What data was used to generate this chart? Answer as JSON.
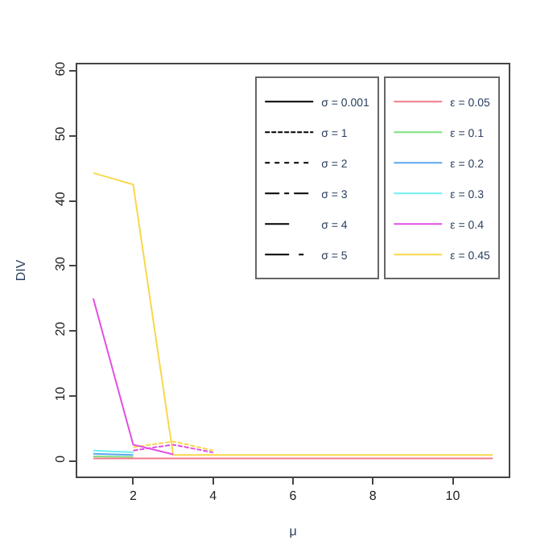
{
  "chart_data": {
    "type": "line",
    "xlabel": "μ",
    "ylabel": "DIV",
    "x": [
      1,
      2,
      3,
      4,
      5,
      6,
      7,
      8,
      9,
      10,
      11
    ],
    "xlim": [
      0.6,
      11.4
    ],
    "xticks": [
      2,
      4,
      6,
      8,
      10
    ],
    "ylim": [
      -2.4,
      61
    ],
    "yticks": [
      0,
      10,
      20,
      30,
      40,
      50,
      60
    ],
    "legend": "top right",
    "marker": "none",
    "series": [
      {
        "name": "σ = 0.001",
        "color": "#000000",
        "line_style": "solid",
        "values": [
          null,
          null,
          null,
          null,
          null,
          null,
          null,
          null,
          null,
          null,
          null
        ]
      },
      {
        "name": "σ = 1",
        "color": "#000000",
        "line_style": "dashed",
        "values": [
          null,
          null,
          null,
          null,
          null,
          null,
          null,
          null,
          null,
          null,
          null
        ]
      },
      {
        "name": "σ = 2",
        "color": "#000000",
        "line_style": "dotted",
        "values": [
          null,
          null,
          null,
          null,
          null,
          null,
          null,
          null,
          null,
          null,
          null
        ]
      },
      {
        "name": "σ = 3",
        "color": "#000000",
        "line_style": "dashdot",
        "values": [
          null,
          null,
          null,
          null,
          null,
          null,
          null,
          null,
          null,
          null,
          null
        ]
      },
      {
        "name": "σ = 4",
        "color": "#000000",
        "line_style": "longdash",
        "values": [
          null,
          null,
          null,
          null,
          null,
          null,
          null,
          null,
          null,
          null,
          null
        ]
      },
      {
        "name": "σ = 5",
        "color": "#000000",
        "line_style": "twodash",
        "values": [
          null,
          null,
          null,
          null,
          null,
          null,
          null,
          null,
          null,
          null,
          null
        ]
      },
      {
        "name": "ε = 0.05",
        "color": "#f07a8a",
        "line_style": "solid",
        "values": [
          0.4,
          0.4,
          0.4,
          0.4,
          0.4,
          0.4,
          0.4,
          0.4,
          0.4,
          0.4,
          0.4
        ]
      },
      {
        "name": "ε = 0.1",
        "color": "#7ee07e",
        "line_style": "solid",
        "values": [
          0.7,
          0.6,
          null,
          null,
          null,
          null,
          null,
          null,
          null,
          null,
          null
        ]
      },
      {
        "name": "ε = 0.2",
        "color": "#5aa8f0",
        "line_style": "solid",
        "values": [
          1.1,
          0.9,
          null,
          null,
          null,
          null,
          null,
          null,
          null,
          null,
          null
        ]
      },
      {
        "name": "ε = 0.3",
        "color": "#6ef0f0",
        "line_style": "solid",
        "values": [
          1.6,
          1.3,
          null,
          null,
          null,
          null,
          null,
          null,
          null,
          null,
          null
        ]
      },
      {
        "name": "ε = 0.4",
        "color": "#e24fe2",
        "line_style": "solid",
        "values": [
          25,
          2.5,
          1.0,
          null,
          null,
          null,
          null,
          null,
          null,
          null,
          null
        ]
      },
      {
        "name": "ε = 0.45",
        "color": "#f8d84a",
        "line_style": "solid",
        "values": [
          44.3,
          42.5,
          0.9,
          0.9,
          0.9,
          0.9,
          0.9,
          0.9,
          0.9,
          0.9,
          0.9
        ]
      },
      {
        "color": "#e24fe2",
        "line_style": "dashed",
        "x": [
          2,
          3,
          4
        ],
        "values": [
          1.6,
          2.5,
          1.3
        ]
      },
      {
        "color": "#f8d84a",
        "line_style": "dashed",
        "x": [
          2,
          3,
          4
        ],
        "values": [
          2.1,
          3.0,
          1.6
        ]
      }
    ]
  }
}
